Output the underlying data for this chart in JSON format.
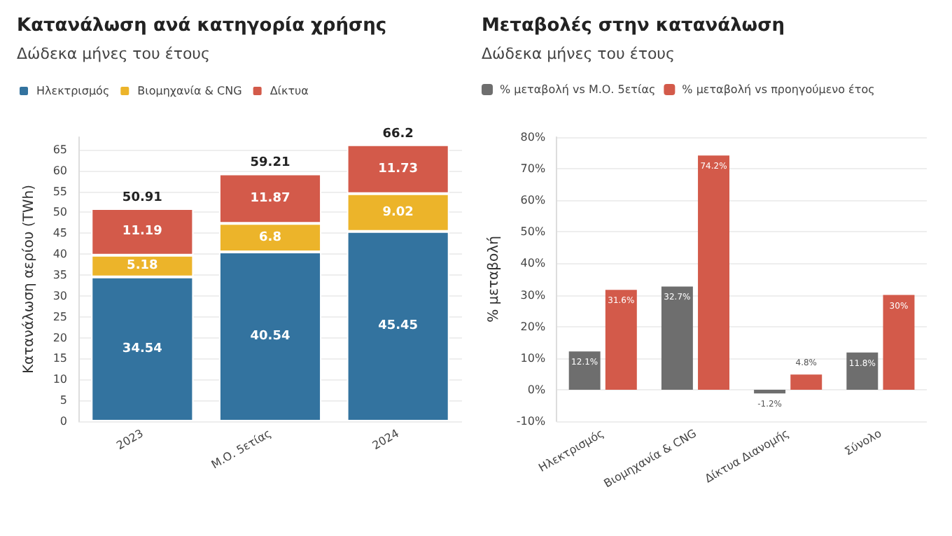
{
  "chart_data": [
    {
      "type": "bar",
      "title": "Κατανάλωση ανά κατηγορία χρήσης",
      "subtitle": "Δώδεκα μήνες του έτους",
      "ylabel": "Κατανάλωση αερίου (TWh)",
      "categories": [
        "2023",
        "Μ.Ο. 5ετίας",
        "2024"
      ],
      "stacked": true,
      "data_labels": true,
      "totals": [
        "50.91",
        "59.21",
        "66.2"
      ],
      "legend": "top left",
      "grid": "y",
      "ylim": [
        0,
        68
      ],
      "yticks": [
        0,
        5,
        10,
        15,
        20,
        25,
        30,
        35,
        40,
        45,
        50,
        55,
        60,
        65
      ],
      "series": [
        {
          "name": "Ηλεκτρισμός",
          "color": "#33739f",
          "values": [
            34.54,
            40.54,
            45.45
          ]
        },
        {
          "name": "Βιομηχανία & CNG",
          "color": "#ecb42a",
          "values": [
            5.18,
            6.8,
            9.02
          ]
        },
        {
          "name": "Δίκτυα",
          "color": "#d35a4a",
          "values": [
            11.19,
            11.87,
            11.73
          ]
        }
      ]
    },
    {
      "type": "bar",
      "title": "Μεταβολές στην κατανάλωση",
      "subtitle": "Δώδεκα μήνες του έτους",
      "ylabel": "% μεταβολή",
      "categories": [
        "Ηλεκτρισμός",
        "Βιομηχανία & CNG",
        "Δίκτυα Διανομής",
        "Σύνολο"
      ],
      "legend": "top left",
      "grid": "y",
      "ylim": [
        -10,
        80
      ],
      "yticks": [
        {
          "value": -10,
          "label": "-10%"
        },
        {
          "value": 0,
          "label": "0%"
        },
        {
          "value": 10,
          "label": "10%"
        },
        {
          "value": 20,
          "label": "20%"
        },
        {
          "value": 30,
          "label": "30%"
        },
        {
          "value": 40,
          "label": "40%"
        },
        {
          "value": 50,
          "label": "50%"
        },
        {
          "value": 60,
          "label": "60%"
        },
        {
          "value": 70,
          "label": "70%"
        },
        {
          "value": 80,
          "label": "80%"
        }
      ],
      "series": [
        {
          "name": "% μεταβολή vs Μ.Ο. 5ετίας",
          "color": "#6e6e6e",
          "values": [
            12.1,
            32.7,
            -1.2,
            11.8
          ],
          "value_labels": [
            "12.1%",
            "32.7%",
            "-1.2%",
            "11.8%"
          ]
        },
        {
          "name": "% μεταβολή vs προηγούμενο έτος",
          "color": "#d35a4a",
          "values": [
            31.6,
            74.2,
            4.8,
            30
          ],
          "value_labels": [
            "31.6%",
            "74.2%",
            "4.8%",
            "30%"
          ]
        }
      ]
    }
  ]
}
